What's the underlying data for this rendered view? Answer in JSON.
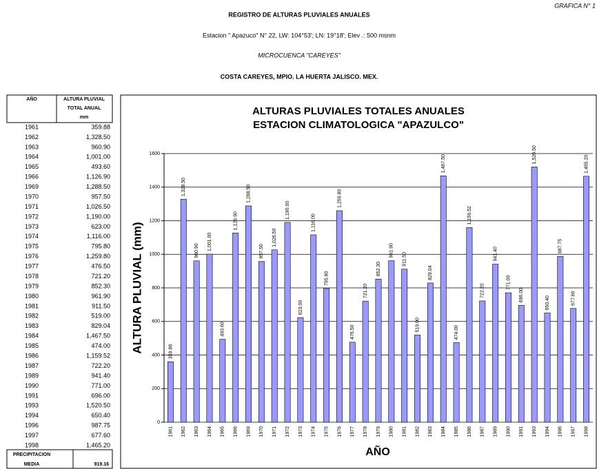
{
  "header": {
    "grafica": "GRAFICA N° 1",
    "title": "REGISTRO DE ALTURAS PLUVIALES ANUALES",
    "station": "Estacion \" Apazuco\" N° 22, LW: 104°53'; LN: 19°18'; Elev .: 500 msnm",
    "microcuenca": "MICROCUENCA \"CAREYES\"",
    "location": "COSTA CAREYES, MPIO. LA HUERTA JALISCO. MEX."
  },
  "table": {
    "headers": [
      "AÑO",
      "ALTURA PLUVIAL",
      "TOTAL ANUAL",
      "mm"
    ],
    "footer": {
      "label": [
        "PRECIPITACION",
        "MEDIA"
      ],
      "value": "919.16"
    }
  },
  "chart_data": {
    "type": "bar",
    "title": [
      "ALTURAS PLUVIALES TOTALES ANUALES",
      "ESTACION CLIMATOLOGICA \"APAZULCO\""
    ],
    "x_label": "AÑO",
    "y_label": "ALTURA PLUVIAL (mm)",
    "color": "#9999ff",
    "categories": [
      "1961",
      "1962",
      "1963",
      "1964",
      "1965",
      "1966",
      "1969",
      "1970",
      "1971",
      "1972",
      "1973",
      "1974",
      "1975",
      "1976",
      "1977",
      "1978",
      "1979",
      "1980",
      "1981",
      "1982",
      "1983",
      "1984",
      "1985",
      "1986",
      "1987",
      "1989",
      "1990",
      "1991",
      "1993",
      "1994",
      "1996",
      "1997",
      "1998"
    ],
    "values": [
      359.88,
      1328.5,
      960.9,
      1001,
      493.6,
      1126.9,
      1288.5,
      957.5,
      1026.5,
      1190,
      623,
      1116,
      795.8,
      1259.8,
      476.5,
      721.2,
      852.3,
      961.9,
      911.5,
      519,
      829.04,
      1467.5,
      474,
      1159.52,
      722.2,
      941.4,
      771,
      696,
      1520.5,
      650.4,
      987.75,
      677.6,
      1465.2
    ],
    "value_labels": [
      "359.88",
      "1,328.50",
      "960.90",
      "1,001.00",
      "493.60",
      "1,126.90",
      "1,288.50",
      "957.50",
      "1,026.50",
      "1,190.00",
      "623.00",
      "1,116.00",
      "795.80",
      "1,259.80",
      "476.50",
      "721.20",
      "852.30",
      "961.90",
      "911.50",
      "519.00",
      "829.04",
      "1,467.50",
      "474.00",
      "1,159.52",
      "722.20",
      "941.40",
      "771.00",
      "696.00",
      "1,520.50",
      "650.40",
      "987.75",
      "677.60",
      "1,465.20"
    ],
    "ylim": [
      0,
      1600
    ],
    "yticks": [
      0,
      200,
      400,
      600,
      800,
      1000,
      1200,
      1400,
      1600
    ],
    "grid": true
  }
}
